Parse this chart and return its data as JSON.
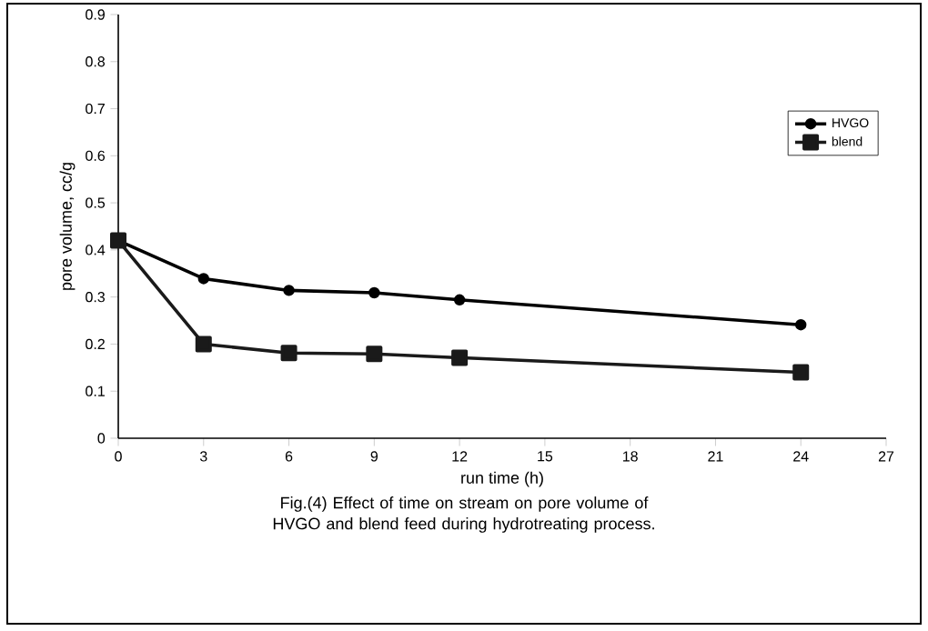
{
  "chart_data": {
    "type": "line",
    "title": "Fig.(4) Effect of time on stream on pore volume of HVGO and blend feed during hydrotreating process.",
    "xlabel": "run time (h)",
    "ylabel": "pore volume, cc/g",
    "x": [
      0,
      3,
      6,
      9,
      12,
      24
    ],
    "series": [
      {
        "name": "HVGO",
        "color": "#000000",
        "marker": "circle",
        "values": [
          0.42,
          0.339,
          0.314,
          0.309,
          0.294,
          0.241
        ]
      },
      {
        "name": "blend",
        "color": "#1a1a1a",
        "marker": "square",
        "values": [
          0.42,
          0.2,
          0.181,
          0.179,
          0.171,
          0.14
        ]
      }
    ],
    "xlim": [
      0,
      27
    ],
    "ylim": [
      0,
      0.9
    ],
    "xticks": [
      0,
      3,
      6,
      9,
      12,
      15,
      18,
      21,
      24,
      27
    ],
    "yticks": [
      0,
      0.1,
      0.2,
      0.3,
      0.4,
      0.5,
      0.6,
      0.7,
      0.8,
      0.9
    ],
    "grid": false,
    "legend": "right",
    "line_style": "solid"
  }
}
